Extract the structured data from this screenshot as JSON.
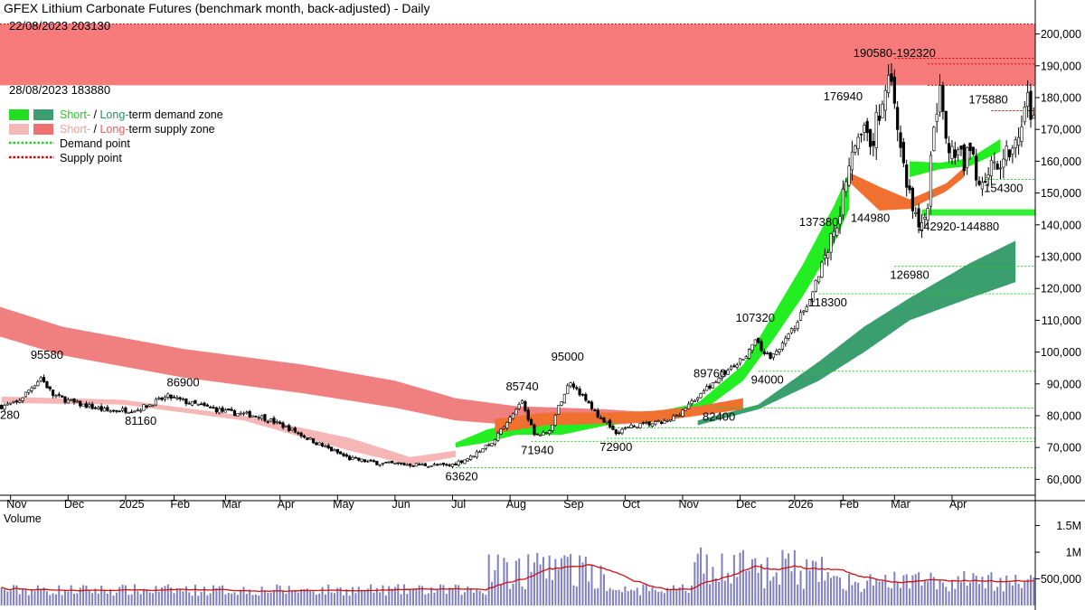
{
  "chart_data": {
    "type": "candlestick",
    "title": "GFEX Lithium Carbonate Futures (benchmark month, back-adjusted) - Daily",
    "price_axis": {
      "min": 55000,
      "max": 205000,
      "ticks": [
        "60,000",
        "70,000",
        "80,000",
        "90,000",
        "100,000",
        "110,000",
        "120,000",
        "130,000",
        "140,000",
        "150,000",
        "160,000",
        "170,000",
        "180,000",
        "190,000",
        "200,000"
      ],
      "tick_values": [
        60000,
        70000,
        80000,
        90000,
        100000,
        110000,
        120000,
        130000,
        140000,
        150000,
        160000,
        170000,
        180000,
        190000,
        200000
      ]
    },
    "x_axis": {
      "labels": [
        "Nov",
        "Dec",
        "2025",
        "Feb",
        "Mar",
        "Apr",
        "May",
        "Jun",
        "Jul",
        "Aug",
        "Sep",
        "Oct",
        "Nov",
        "Dec",
        "2026",
        "Feb",
        "Mar",
        "Apr"
      ],
      "label_index": [
        5,
        24,
        43,
        59,
        76,
        94,
        113,
        132,
        151,
        170,
        189,
        208,
        227,
        246,
        264,
        280,
        297,
        316
      ]
    },
    "volume_axis": {
      "title": "Volume",
      "max": 1900000,
      "ticks": [
        "500,000",
        "1M",
        "1.5M"
      ],
      "tick_values": [
        500000,
        1000000,
        1500000
      ]
    },
    "long_term_supply_zone": {
      "upper": [
        [
          -8,
          116500
        ],
        [
          20,
          108000
        ],
        [
          60,
          101000
        ],
        [
          100,
          96000
        ],
        [
          130,
          91000
        ],
        [
          150,
          85500
        ],
        [
          170,
          83000
        ],
        [
          200,
          82000
        ],
        [
          215,
          81000
        ]
      ],
      "lower": [
        [
          -8,
          107000
        ],
        [
          20,
          99000
        ],
        [
          60,
          92000
        ],
        [
          100,
          87000
        ],
        [
          130,
          82500
        ],
        [
          150,
          78500
        ],
        [
          170,
          77000
        ],
        [
          200,
          77000
        ],
        [
          215,
          78000
        ]
      ]
    },
    "short_term_supply_zone": {
      "upper": [
        [
          0,
          86000
        ],
        [
          40,
          85000
        ],
        [
          80,
          80000
        ],
        [
          115,
          73000
        ],
        [
          135,
          67000
        ],
        [
          150,
          69000
        ]
      ],
      "lower": [
        [
          0,
          84000
        ],
        [
          40,
          83500
        ],
        [
          80,
          78500
        ],
        [
          115,
          69000
        ],
        [
          135,
          64500
        ],
        [
          150,
          67000
        ]
      ]
    },
    "long_term_demand_zone": {
      "upper": [
        [
          230,
          78500
        ],
        [
          250,
          83500
        ],
        [
          270,
          97000
        ],
        [
          285,
          108000
        ],
        [
          300,
          117000
        ],
        [
          320,
          128000
        ],
        [
          335,
          135000
        ]
      ],
      "lower": [
        [
          230,
          77000
        ],
        [
          250,
          82000
        ],
        [
          270,
          91000
        ],
        [
          285,
          100000
        ],
        [
          300,
          110000
        ],
        [
          320,
          117000
        ],
        [
          335,
          122000
        ]
      ]
    },
    "short_term_demand_zone": {
      "upper": [
        [
          150,
          71500
        ],
        [
          160,
          75500
        ],
        [
          170,
          78000
        ],
        [
          185,
          77500
        ],
        [
          200,
          79000
        ],
        [
          215,
          81000
        ],
        [
          230,
          84000
        ],
        [
          245,
          96000
        ],
        [
          255,
          112000
        ],
        [
          265,
          128000
        ],
        [
          275,
          146000
        ],
        [
          280,
          156500
        ]
      ],
      "lower": [
        [
          150,
          70000
        ],
        [
          160,
          71500
        ],
        [
          170,
          74000
        ],
        [
          185,
          74000
        ],
        [
          200,
          77000
        ],
        [
          215,
          79000
        ],
        [
          230,
          80500
        ],
        [
          245,
          91000
        ],
        [
          255,
          104000
        ],
        [
          265,
          118000
        ],
        [
          275,
          134000
        ],
        [
          280,
          145000
        ]
      ]
    },
    "short_term_demand_zone_recent": {
      "upper": [
        [
          300,
          160000
        ],
        [
          310,
          159500
        ],
        [
          320,
          161000
        ],
        [
          330,
          167000
        ]
      ],
      "lower": [
        [
          300,
          155000
        ],
        [
          310,
          157500
        ],
        [
          320,
          158500
        ],
        [
          330,
          163000
        ]
      ]
    },
    "orange_overlap_zones": [
      {
        "upper": [
          [
            163,
            79000
          ],
          [
            180,
            81000
          ],
          [
            200,
            81000
          ],
          [
            215,
            81500
          ],
          [
            230,
            83000
          ],
          [
            245,
            85500
          ]
        ],
        "lower": [
          [
            163,
            74500
          ],
          [
            180,
            77000
          ],
          [
            200,
            77500
          ],
          [
            215,
            78000
          ],
          [
            230,
            80000
          ],
          [
            245,
            82000
          ]
        ]
      },
      {
        "upper": [
          [
            280,
            156500
          ],
          [
            290,
            152000
          ],
          [
            300,
            148000
          ],
          [
            312,
            153000
          ],
          [
            318,
            158000
          ]
        ],
        "lower": [
          [
            280,
            153500
          ],
          [
            290,
            144500
          ],
          [
            300,
            145000
          ],
          [
            312,
            150500
          ],
          [
            318,
            155000
          ]
        ]
      }
    ],
    "demand_points": [
      63620,
      71940,
      72900,
      76200,
      82400,
      94000,
      118300,
      126980,
      154300
    ],
    "supply_points": [
      175880,
      183880,
      190580,
      192320
    ],
    "supply_box": {
      "upper": 203130,
      "lower": 183880
    },
    "supply_box_labels": [
      "22/08/2023 203130",
      "28/08/2023 183880"
    ],
    "demand_bar": {
      "price": 143900,
      "thickness": 2000,
      "x_from": 304,
      "x_to": 340,
      "label": "142920-144880"
    },
    "annotations": [
      {
        "text": "95580",
        "x": 15,
        "y": 95580
      },
      {
        "text": "280",
        "x": 0,
        "y": 83000
      },
      {
        "text": "86900",
        "x": 60,
        "y": 86900
      },
      {
        "text": "81160",
        "x": 46,
        "y": 81160
      },
      {
        "text": "63620",
        "x": 152,
        "y": 63620
      },
      {
        "text": "85740",
        "x": 172,
        "y": 85740
      },
      {
        "text": "71940",
        "x": 177,
        "y": 71940
      },
      {
        "text": "95000",
        "x": 187,
        "y": 95000
      },
      {
        "text": "72900",
        "x": 203,
        "y": 72900
      },
      {
        "text": "89760",
        "x": 234,
        "y": 89760
      },
      {
        "text": "82400",
        "x": 237,
        "y": 82400
      },
      {
        "text": "107320",
        "x": 249,
        "y": 107320
      },
      {
        "text": "94000",
        "x": 253,
        "y": 94000
      },
      {
        "text": "118300",
        "x": 273,
        "y": 118300
      },
      {
        "text": "137380",
        "x": 270,
        "y": 137380
      },
      {
        "text": "176940",
        "x": 278,
        "y": 176940
      },
      {
        "text": "144980",
        "x": 287,
        "y": 144980
      },
      {
        "text": "190580-192320",
        "x": 295,
        "y": 190580
      },
      {
        "text": "126980",
        "x": 300,
        "y": 126980
      },
      {
        "text": "175880",
        "x": 326,
        "y": 175880
      },
      {
        "text": "154300",
        "x": 331,
        "y": 154300
      }
    ],
    "legend": [
      {
        "label_a": "Short-",
        "sep": " / ",
        "label_b": "Long-",
        "rest": "term demand zone",
        "color_a": "#22dd22",
        "color_b": "#3a9e6e"
      },
      {
        "label_a": "Short-",
        "sep": " / ",
        "label_b": "Long-",
        "rest": "term supply zone",
        "color_a": "#f4b8b8",
        "color_b": "#ef7070"
      },
      {
        "label": "Demand point",
        "color": "#22cc22"
      },
      {
        "label": "Supply point",
        "color": "#cc0000"
      }
    ],
    "colors": {
      "supply_box": "#f77b7b",
      "long_supply": "#f08080",
      "short_supply": "#f6b6b6",
      "long_demand": "#3a9e6e",
      "short_demand": "#22ee22",
      "overlap": "#f07030",
      "demand_bar": "#33ee33",
      "volume_bar": "#8080c0",
      "volume_ma": "#d01010",
      "candle_up": "#ffffff",
      "candle_down": "#000000"
    }
  }
}
